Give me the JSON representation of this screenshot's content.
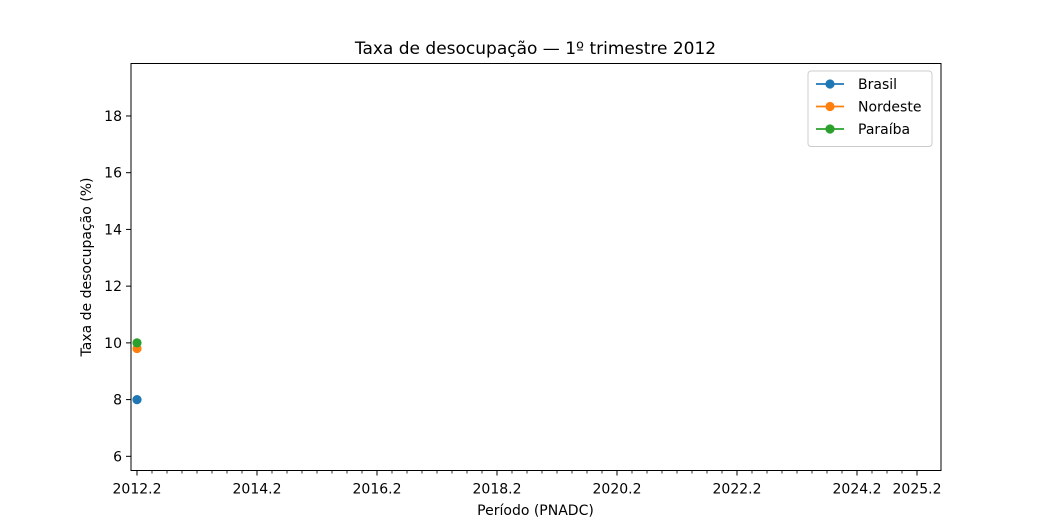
{
  "chart_data": {
    "type": "line",
    "title": "Taxa de desocupação — 1º trimestre 2012",
    "xlabel": "Período (PNADC)",
    "ylabel": "Taxa de desocupação (%)",
    "x_tick_labels": [
      "2012.2",
      "2014.2",
      "2016.2",
      "2018.2",
      "2020.2",
      "2022.2",
      "2024.2",
      "2025.2"
    ],
    "x_tick_values": [
      0,
      8,
      16,
      24,
      32,
      40,
      48,
      52
    ],
    "x_minor_ticks": [
      1,
      2,
      3,
      4,
      5,
      6,
      7,
      9,
      10,
      11,
      12,
      13,
      14,
      15,
      17,
      18,
      19,
      20,
      21,
      22,
      23,
      25,
      26,
      27,
      28,
      29,
      30,
      31,
      33,
      34,
      35,
      36,
      37,
      38,
      39,
      41,
      42,
      43,
      44,
      45,
      46,
      47,
      49,
      50,
      51
    ],
    "xlim": [
      -0.4,
      53.6
    ],
    "yticks": [
      6,
      8,
      10,
      12,
      14,
      16,
      18
    ],
    "ylim": [
      5.5,
      19.85
    ],
    "grid": false,
    "legend_position": "top-right",
    "series": [
      {
        "name": "Brasil",
        "color": "#1f77b4",
        "points": [
          {
            "x": "2012.1",
            "xi": 0,
            "y": 8.0
          }
        ]
      },
      {
        "name": "Nordeste",
        "color": "#ff7f0e",
        "points": [
          {
            "x": "2012.1",
            "xi": 0,
            "y": 9.8
          }
        ]
      },
      {
        "name": "Paraíba",
        "color": "#2ca02c",
        "points": [
          {
            "x": "2012.1",
            "xi": 0,
            "y": 10.0
          }
        ]
      }
    ]
  }
}
